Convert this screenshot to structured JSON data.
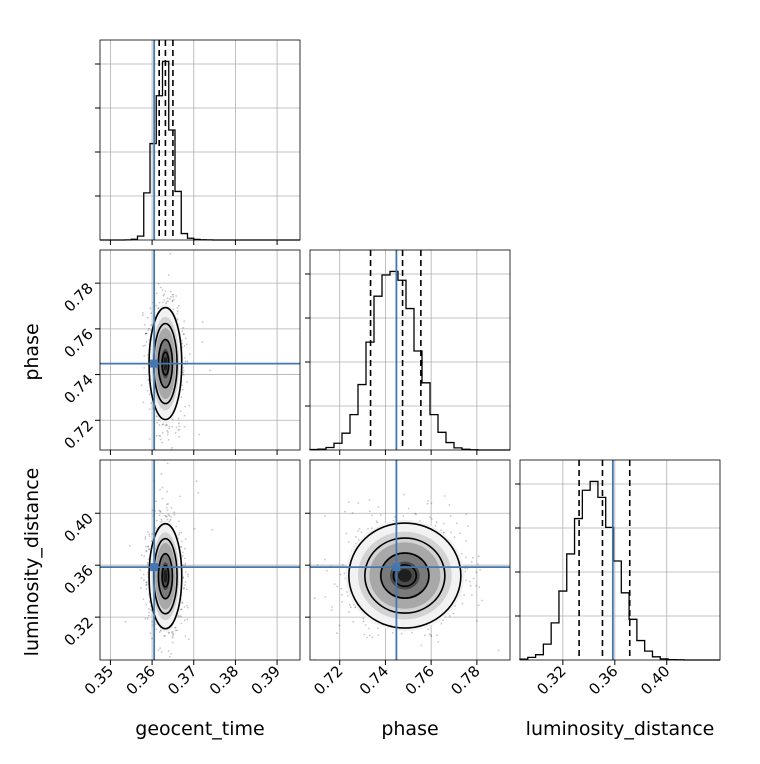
{
  "chart_data": {
    "type": "corner",
    "parameters": [
      "geocent_time",
      "phase",
      "luminosity_distance"
    ],
    "truths": {
      "geocent_time": 0.3605,
      "phase": 0.7448,
      "luminosity_distance": 0.3585
    },
    "truth_color": "#4477b0",
    "axes": {
      "geocent_time": {
        "range": [
          0.3475,
          0.3955
        ],
        "ticks": [
          "0.35",
          "0.36",
          "0.37",
          "0.38",
          "0.39"
        ],
        "tick_values": [
          0.35,
          0.36,
          0.37,
          0.38,
          0.39
        ]
      },
      "phase": {
        "range": [
          0.707,
          0.7945
        ],
        "ticks": [
          "0.72",
          "0.74",
          "0.76",
          "0.78"
        ],
        "tick_values": [
          0.72,
          0.74,
          0.76,
          0.78
        ]
      },
      "luminosity_distance": {
        "range": [
          0.287,
          0.441
        ],
        "ticks": [
          "0.32",
          "0.36",
          "0.40"
        ],
        "tick_values": [
          0.32,
          0.36,
          0.4
        ]
      }
    },
    "marginals": {
      "geocent_time": {
        "edges": [
          0.3475,
          0.349,
          0.3505,
          0.352,
          0.3535,
          0.355,
          0.3565,
          0.358,
          0.3595,
          0.361,
          0.3625,
          0.364,
          0.3655,
          0.367,
          0.3685,
          0.37,
          0.3715,
          0.373,
          0.3745,
          0.376,
          0.3775,
          0.379,
          0.3805,
          0.382,
          0.3835,
          0.385,
          0.3865,
          0.388,
          0.3895,
          0.391,
          0.3925,
          0.394,
          0.3955
        ],
        "counts": [
          0,
          0,
          0,
          0,
          1,
          5,
          27,
          330,
          675,
          1010,
          1250,
          770,
          340,
          45,
          12,
          4,
          2,
          1,
          0,
          0,
          0,
          0,
          0,
          0,
          0,
          0,
          0,
          0,
          0,
          0,
          0,
          0
        ],
        "quantiles": [
          0.3617,
          0.3632,
          0.365
        ]
      },
      "phase": {
        "edges": [
          0.707,
          0.7105,
          0.714,
          0.7175,
          0.721,
          0.7245,
          0.728,
          0.7315,
          0.735,
          0.7385,
          0.742,
          0.7455,
          0.749,
          0.7525,
          0.756,
          0.7595,
          0.763,
          0.7665,
          0.77,
          0.7735,
          0.777,
          0.7805,
          0.784,
          0.7875,
          0.791,
          0.7945
        ],
        "counts": [
          3,
          5,
          14,
          38,
          95,
          200,
          370,
          610,
          870,
          990,
          1010,
          960,
          800,
          560,
          380,
          200,
          100,
          42,
          12,
          4,
          1,
          0,
          0,
          0,
          0
        ],
        "quantiles": [
          0.7335,
          0.7475,
          0.7555
        ]
      },
      "luminosity_distance": {
        "edges": [
          0.287,
          0.293,
          0.299,
          0.305,
          0.311,
          0.317,
          0.323,
          0.329,
          0.335,
          0.341,
          0.347,
          0.353,
          0.359,
          0.365,
          0.371,
          0.377,
          0.383,
          0.389,
          0.395,
          0.401,
          0.407,
          0.413,
          0.419,
          0.425,
          0.431,
          0.437,
          0.441
        ],
        "counts": [
          5,
          15,
          30,
          90,
          210,
          390,
          600,
          800,
          960,
          1010,
          920,
          750,
          560,
          380,
          230,
          110,
          50,
          18,
          6,
          2,
          1,
          0,
          0,
          0,
          0,
          0
        ],
        "quantiles": [
          0.3325,
          0.3505,
          0.3715
        ]
      }
    },
    "joint": [
      {
        "x": "geocent_time",
        "y": "phase",
        "mean": [
          0.3632,
          0.7448
        ],
        "sd": [
          0.0016,
          0.01
        ],
        "corr": 0.0
      },
      {
        "x": "geocent_time",
        "y": "luminosity_distance",
        "mean": [
          0.3632,
          0.3515
        ],
        "sd": [
          0.0016,
          0.0165
        ],
        "corr": 0.0
      },
      {
        "x": "phase",
        "y": "luminosity_distance",
        "mean": [
          0.7485,
          0.352
        ],
        "sd": [
          0.01,
          0.0165
        ],
        "corr": 0.0
      }
    ]
  }
}
